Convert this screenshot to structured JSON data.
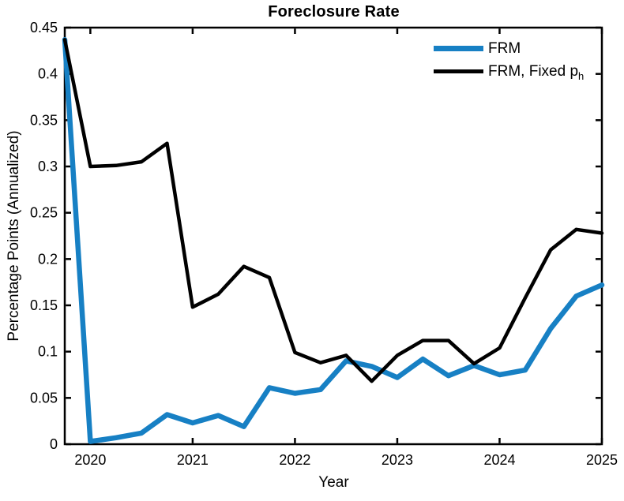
{
  "background": "#ffffff",
  "axis_color": "#000000",
  "legend": {
    "items": [
      {
        "label": "FRM",
        "sub": "",
        "color": "#1780c4"
      },
      {
        "label": "FRM, Fixed p",
        "sub": "h",
        "color": "#000000"
      }
    ]
  },
  "chart_data": {
    "type": "line",
    "title": "Foreclosure Rate",
    "xlabel": "Year",
    "ylabel": "Percentage Points (Annualized)",
    "xlim": [
      2019.75,
      2025
    ],
    "ylim": [
      0,
      0.45
    ],
    "grid": false,
    "legend_position": "upper-right-inside-no-frame",
    "x_ticks": [
      2020,
      2021,
      2022,
      2023,
      2024,
      2025
    ],
    "x_tick_labels": [
      "2020",
      "2021",
      "2022",
      "2023",
      "2024",
      "2025"
    ],
    "y_ticks": [
      0,
      0.05,
      0.1,
      0.15,
      0.2,
      0.25,
      0.3,
      0.35,
      0.4,
      0.45
    ],
    "y_tick_labels": [
      "0",
      "0.05",
      "0.1",
      "0.15",
      "0.2",
      "0.25",
      "0.3",
      "0.35",
      "0.4",
      "0.45"
    ],
    "x": [
      2019.75,
      2020.0,
      2020.25,
      2020.5,
      2020.75,
      2021.0,
      2021.25,
      2021.5,
      2021.75,
      2022.0,
      2022.25,
      2022.5,
      2022.75,
      2023.0,
      2023.25,
      2023.5,
      2023.75,
      2024.0,
      2024.25,
      2024.5,
      2024.75,
      2025.0
    ],
    "series": [
      {
        "name": "FRM",
        "color": "#1780c4",
        "line_width": 6.5,
        "values": [
          0.437,
          0.003,
          0.007,
          0.012,
          0.032,
          0.023,
          0.031,
          0.019,
          0.061,
          0.055,
          0.059,
          0.09,
          0.084,
          0.072,
          0.092,
          0.074,
          0.085,
          0.075,
          0.08,
          0.125,
          0.16,
          0.172
        ]
      },
      {
        "name": "FRM, Fixed p_h",
        "color": "#000000",
        "line_width": 4.5,
        "values": [
          0.437,
          0.3,
          0.301,
          0.305,
          0.325,
          0.148,
          0.162,
          0.192,
          0.18,
          0.099,
          0.088,
          0.096,
          0.068,
          0.096,
          0.112,
          0.112,
          0.087,
          0.104,
          0.158,
          0.21,
          0.232,
          0.228
        ]
      }
    ]
  }
}
